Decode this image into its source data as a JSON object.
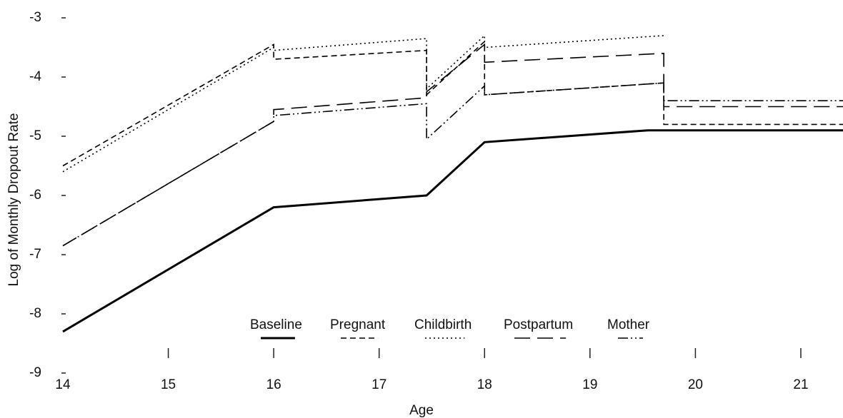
{
  "chart_data": {
    "type": "line",
    "x_label": "Age",
    "y_label": "Log of Monthly Dropout Rate",
    "xlim": [
      14,
      21.4
    ],
    "ylim": [
      -9,
      -3
    ],
    "xticks": [
      14,
      15,
      16,
      17,
      18,
      19,
      20,
      21
    ],
    "yticks": [
      -3,
      -4,
      -5,
      -6,
      -7,
      -8,
      -9
    ],
    "series": [
      {
        "name": "Baseline",
        "color": "#000000",
        "dash": "solid",
        "x": [
          14,
          16,
          17.45,
          18,
          19.55,
          21.4
        ],
        "values": [
          -8.3,
          -6.2,
          -6.0,
          -5.1,
          -4.9,
          -4.9
        ]
      },
      {
        "name": "Pregnant",
        "color": "#000000",
        "dash": "dashed",
        "x": [
          14,
          16,
          16,
          17.45,
          17.45,
          18,
          18,
          19.7,
          19.7,
          21.4
        ],
        "values": [
          -5.5,
          -3.45,
          -3.7,
          -3.55,
          -4.3,
          -3.4,
          -4.3,
          -4.1,
          -4.8,
          -4.8
        ]
      },
      {
        "name": "Childbirth",
        "color": "#000000",
        "dash": "dotted",
        "x": [
          14,
          16,
          16,
          17.45,
          17.45,
          18,
          18,
          19.7
        ],
        "values": [
          -5.6,
          -3.5,
          -3.55,
          -3.35,
          -4.2,
          -3.3,
          -3.5,
          -3.3
        ]
      },
      {
        "name": "Postpartum",
        "color": "#000000",
        "dash": "longdash",
        "x": [
          14,
          16,
          16,
          17.45,
          17.45,
          18,
          18,
          19.7,
          19.7,
          21.4
        ],
        "values": [
          -6.85,
          -4.75,
          -4.55,
          -4.35,
          -4.25,
          -3.45,
          -3.75,
          -3.6,
          -4.5,
          -4.5
        ]
      },
      {
        "name": "Mother",
        "color": "#000000",
        "dash": "dashdotdot",
        "x": [
          14,
          16,
          16,
          17.45,
          17.45,
          18,
          18,
          19.7,
          19.7,
          21.4
        ],
        "values": [
          -6.85,
          -4.75,
          -4.65,
          -4.45,
          -5.05,
          -4.15,
          -4.3,
          -4.1,
          -4.4,
          -4.4
        ]
      }
    ]
  }
}
